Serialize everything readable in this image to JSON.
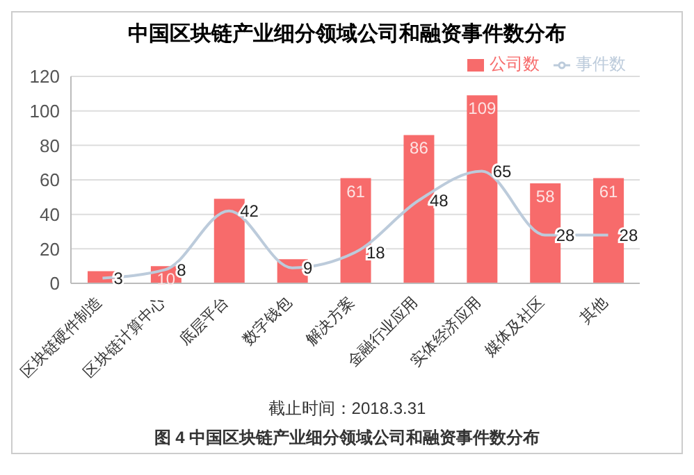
{
  "chart_data": {
    "type": "bar",
    "title": "中国区块链产业细分领域公司和融资事件数分布",
    "categories": [
      "区块链硬件制造",
      "区块链计算中心",
      "底层平台",
      "数字钱包",
      "解决方案",
      "金融行业应用",
      "实体经济应用",
      "媒体及社区",
      "其他"
    ],
    "series": [
      {
        "name": "公司数",
        "color": "#f76b6b",
        "values": [
          7,
          10,
          49,
          14,
          61,
          86,
          109,
          58,
          61
        ],
        "value_labels": [
          null,
          "10",
          null,
          null,
          "61",
          "86",
          "109",
          "58",
          "61"
        ]
      },
      {
        "name": "事件数",
        "type": "line",
        "color": "#bccbdb",
        "values": [
          3,
          8,
          42,
          9,
          18,
          48,
          65,
          28,
          28
        ],
        "value_labels": [
          "3",
          "8",
          "42",
          "9",
          "18",
          "48",
          "65",
          "28",
          "28"
        ]
      }
    ],
    "ylim": [
      0,
      120
    ],
    "yticks": [
      0,
      20,
      40,
      60,
      80,
      100,
      120
    ],
    "grid": "y",
    "legend": "top right",
    "marker": "none",
    "annotations": [
      "截止时间：2018.3.31",
      "图 4 中国区块链产业细分领域公司和融资事件数分布"
    ]
  }
}
